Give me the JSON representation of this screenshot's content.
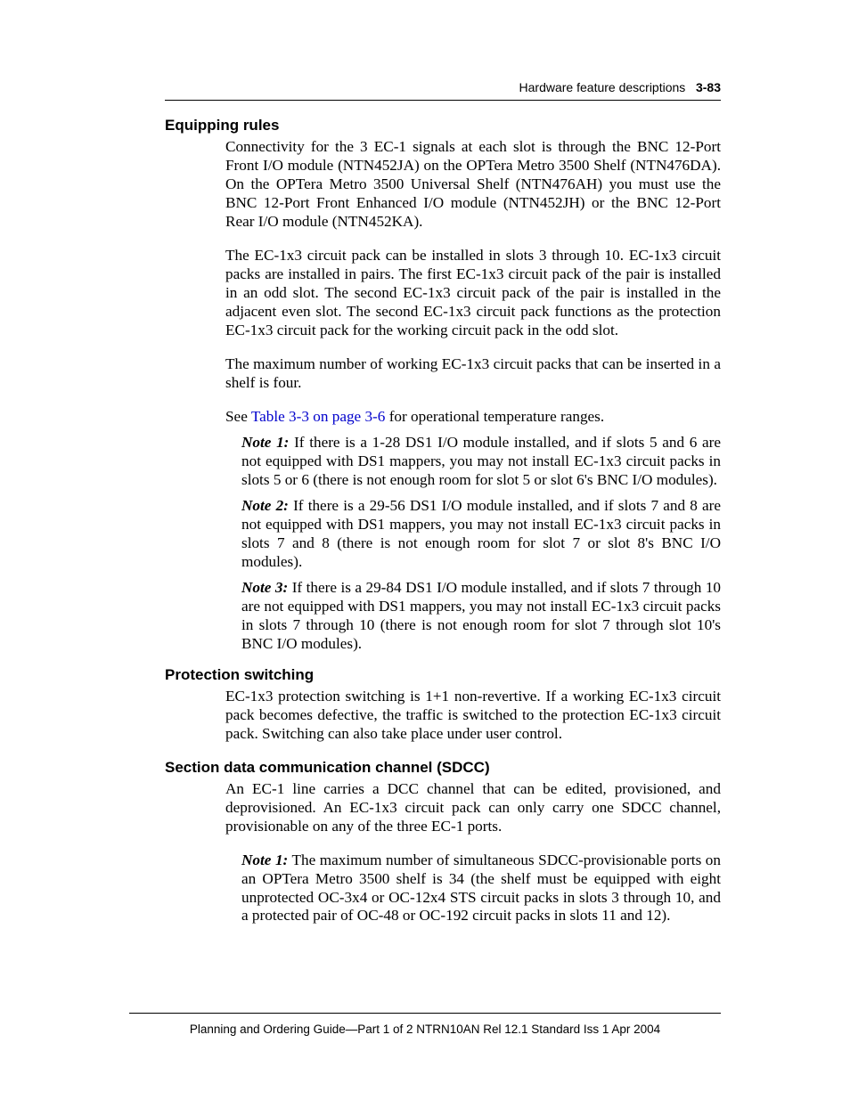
{
  "header": {
    "running_title": "Hardware feature descriptions",
    "page_number": "3-83"
  },
  "sections": [
    {
      "heading": "Equipping rules",
      "paragraphs": [
        "Connectivity for the 3 EC-1 signals at each slot is through the BNC 12-Port Front I/O module (NTN452JA) on the OPTera Metro 3500 Shelf (NTN476DA). On the OPTera Metro 3500 Universal Shelf (NTN476AH) you must use the BNC 12-Port Front Enhanced I/O module (NTN452JH) or the BNC 12-Port Rear I/O module (NTN452KA).",
        "The EC-1x3 circuit pack can be installed in slots 3 through 10. EC-1x3 circuit packs are installed in pairs. The first EC-1x3 circuit pack of the pair is installed in an odd slot. The second EC-1x3 circuit pack of the pair is installed in the adjacent even slot. The second EC-1x3 circuit pack functions as the protection EC-1x3 circuit pack for the working circuit pack in the odd slot.",
        "The maximum number of working EC-1x3 circuit packs that can be inserted in a shelf is four."
      ],
      "link_sentence_prefix": "See ",
      "link_text": "Table 3-3 on page 3-6",
      "link_sentence_suffix": " for operational temperature ranges.",
      "notes": [
        {
          "label": "Note 1:",
          "text": "  If there is a 1-28 DS1 I/O module installed, and if slots 5 and 6 are not equipped with DS1 mappers, you may not install EC-1x3 circuit packs in slots 5 or 6 (there is not enough room for slot 5 or slot 6's BNC I/O modules)."
        },
        {
          "label": "Note 2:",
          "text": "  If there is a 29-56 DS1 I/O module installed, and if slots 7 and 8 are not equipped with DS1 mappers, you may not install EC-1x3 circuit packs in slots 7 and 8 (there is not enough room for slot 7 or slot 8's BNC I/O modules)."
        },
        {
          "label": "Note 3:",
          "text": "  If there is a 29-84 DS1 I/O module installed, and if slots 7 through 10 are not equipped with DS1 mappers, you may not install EC-1x3 circuit packs in slots 7 through 10 (there is not enough room for slot 7 through slot 10's BNC I/O modules)."
        }
      ]
    },
    {
      "heading": "Protection switching",
      "paragraphs": [
        "EC-1x3 protection switching is 1+1 non-revertive. If a working EC-1x3 circuit pack becomes defective, the traffic is switched to the protection EC-1x3 circuit pack. Switching can also take place under user control."
      ]
    },
    {
      "heading": "Section data communication channel (SDCC)",
      "paragraphs": [
        "An EC-1 line carries a DCC channel that can be edited, provisioned, and deprovisioned. An EC-1x3 circuit pack can only carry one SDCC channel, provisionable on any of the three EC-1 ports."
      ],
      "notes": [
        {
          "label": "Note 1:",
          "text": "  The maximum number of simultaneous SDCC-provisionable ports on an OPTera Metro 3500 shelf is 34 (the shelf must be equipped with eight unprotected OC-3x4 or OC-12x4 STS circuit packs in slots 3 through 10, and a protected pair of OC-48 or OC-192 circuit packs in slots 11 and 12)."
        }
      ]
    }
  ],
  "footer": {
    "text": "Planning and Ordering Guide—Part 1 of 2   NTRN10AN   Rel 12.1   Standard   Iss 1   Apr 2004"
  },
  "style": {
    "link_color": "#0000cc",
    "body_font": "Times New Roman",
    "heading_font": "Helvetica",
    "body_fontsize_pt": 13,
    "heading_fontsize_pt": 12.5,
    "header_fontsize_pt": 10.5,
    "footer_fontsize_pt": 10,
    "text_color": "#000000",
    "background_color": "#ffffff",
    "rule_color": "#000000"
  }
}
